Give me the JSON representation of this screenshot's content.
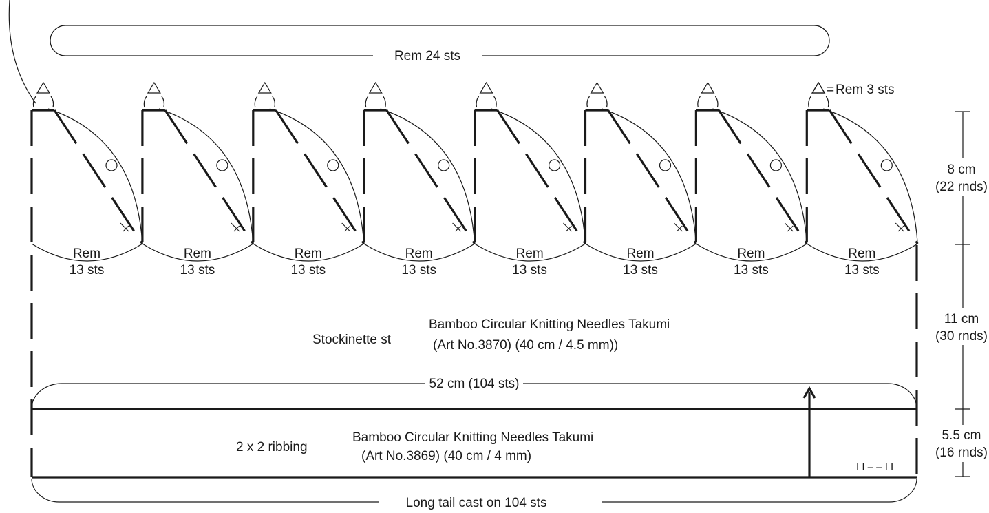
{
  "labels": {
    "top_remaining": "Rem 24 sts",
    "tip_legend_equals": "=",
    "tip_legend_text": "Rem  3 sts",
    "section_rem_line1": "Rem",
    "section_rem_line2": "13 sts",
    "body_stitch": "Stockinette st",
    "body_needle_line1": "Bamboo Circular Knitting Needles Takumi",
    "body_needle_line2": "(Art No.3870) (40 cm / 4.5 mm))",
    "circumference": "52 cm (104 sts)",
    "rib_stitch": "2 x 2 ribbing",
    "rib_needle_line1": "Bamboo Circular Knitting Needles Takumi",
    "rib_needle_line2": "(Art No.3869) (40 cm / 4 mm)",
    "cast_on": "Long tail cast on 104 sts",
    "rib_symbol": "I I – – I I"
  },
  "dimensions": [
    {
      "cm": "8 cm",
      "rnds": "(22 rnds)"
    },
    {
      "cm": "11 cm",
      "rnds": "(30 rnds)"
    },
    {
      "cm": "5.5 cm",
      "rnds": "(16 rnds)"
    }
  ],
  "crown_sections": 8
}
